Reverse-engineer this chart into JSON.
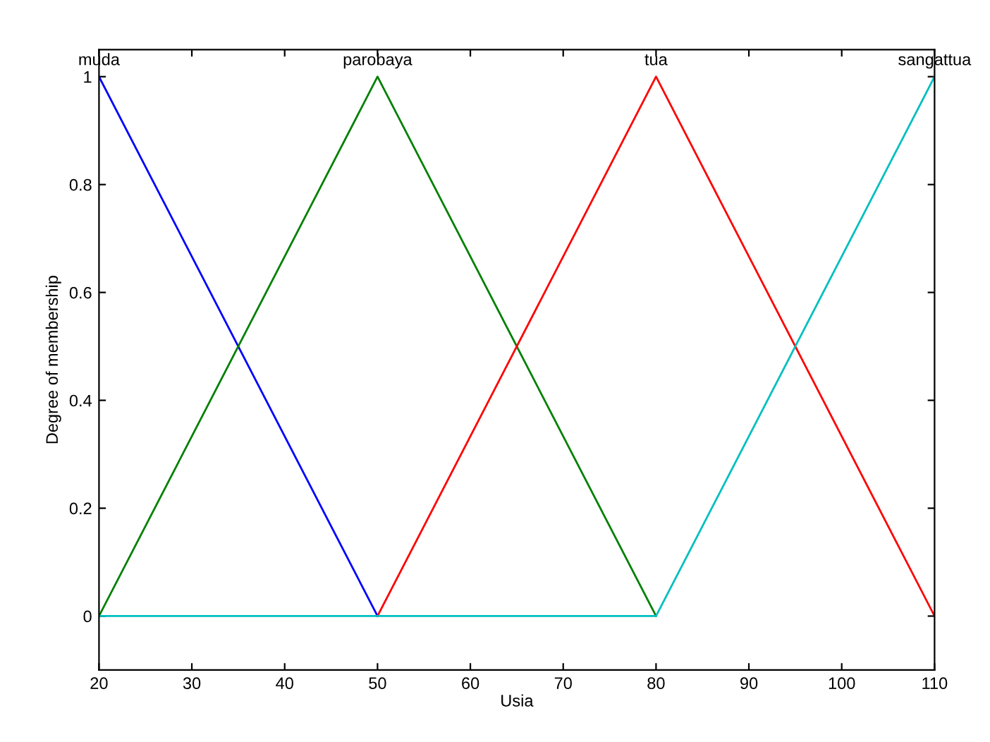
{
  "chart_data": {
    "type": "line",
    "xlabel": "Usia",
    "ylabel": "Degree of membership",
    "series": [
      {
        "name": "muda",
        "color": "#0000ff",
        "x": [
          20,
          50
        ],
        "values": [
          1,
          0
        ]
      },
      {
        "name": "parobaya",
        "color": "#008000",
        "x": [
          20,
          50,
          80
        ],
        "values": [
          0,
          1,
          0
        ]
      },
      {
        "name": "tua",
        "color": "#ff0000",
        "x": [
          50,
          80,
          110
        ],
        "values": [
          0,
          1,
          0
        ]
      },
      {
        "name": "sangattua",
        "color": "#00bfbf",
        "x": [
          20,
          80,
          110
        ],
        "values": [
          0,
          0,
          1
        ]
      }
    ],
    "xlim": [
      20,
      110
    ],
    "xticks": [
      20,
      30,
      40,
      50,
      60,
      70,
      80,
      90,
      100,
      110
    ],
    "ylim": [
      -0.1,
      1.05
    ],
    "yticks": [
      0,
      0.2,
      0.4,
      0.6,
      0.8,
      1
    ],
    "grid": false,
    "legend": false,
    "marker": "none",
    "line_style": "solid"
  }
}
